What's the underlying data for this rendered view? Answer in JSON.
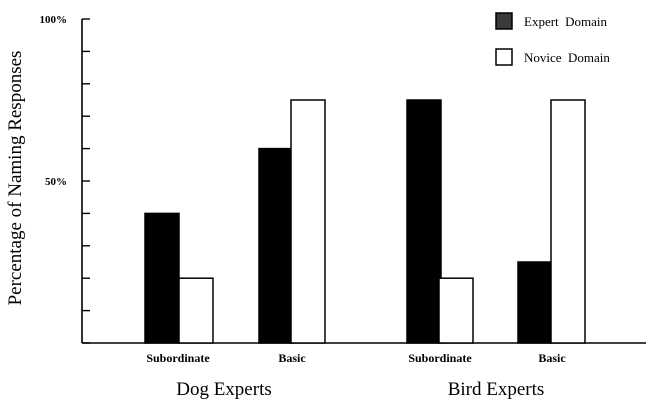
{
  "chart_data": {
    "type": "bar",
    "title": "",
    "ylabel": "Percentage  of Naming Responses",
    "xlabel": "",
    "ylim": [
      0,
      100
    ],
    "y_ticks": [
      0,
      10,
      20,
      30,
      40,
      50,
      60,
      70,
      80,
      90,
      100
    ],
    "y_tick_labels": [
      {
        "value": 50,
        "label": "50%"
      },
      {
        "value": 100,
        "label": "100%"
      }
    ],
    "groups": [
      {
        "label": "Dog Experts",
        "categories": [
          {
            "label": "Subordinate",
            "values": [
              40,
              20
            ]
          },
          {
            "label": "Basic",
            "values": [
              60,
              75
            ]
          }
        ]
      },
      {
        "label": "Bird Experts",
        "categories": [
          {
            "label": "Subordinate",
            "values": [
              75,
              20
            ]
          },
          {
            "label": "Basic",
            "values": [
              25,
              75
            ]
          }
        ]
      }
    ],
    "series": [
      {
        "name": "Expert  Domain",
        "color": "#000000"
      },
      {
        "name": "Novice  Domain",
        "color": "#ffffff"
      }
    ],
    "legend": {
      "position": "top-right"
    },
    "grid": false
  }
}
